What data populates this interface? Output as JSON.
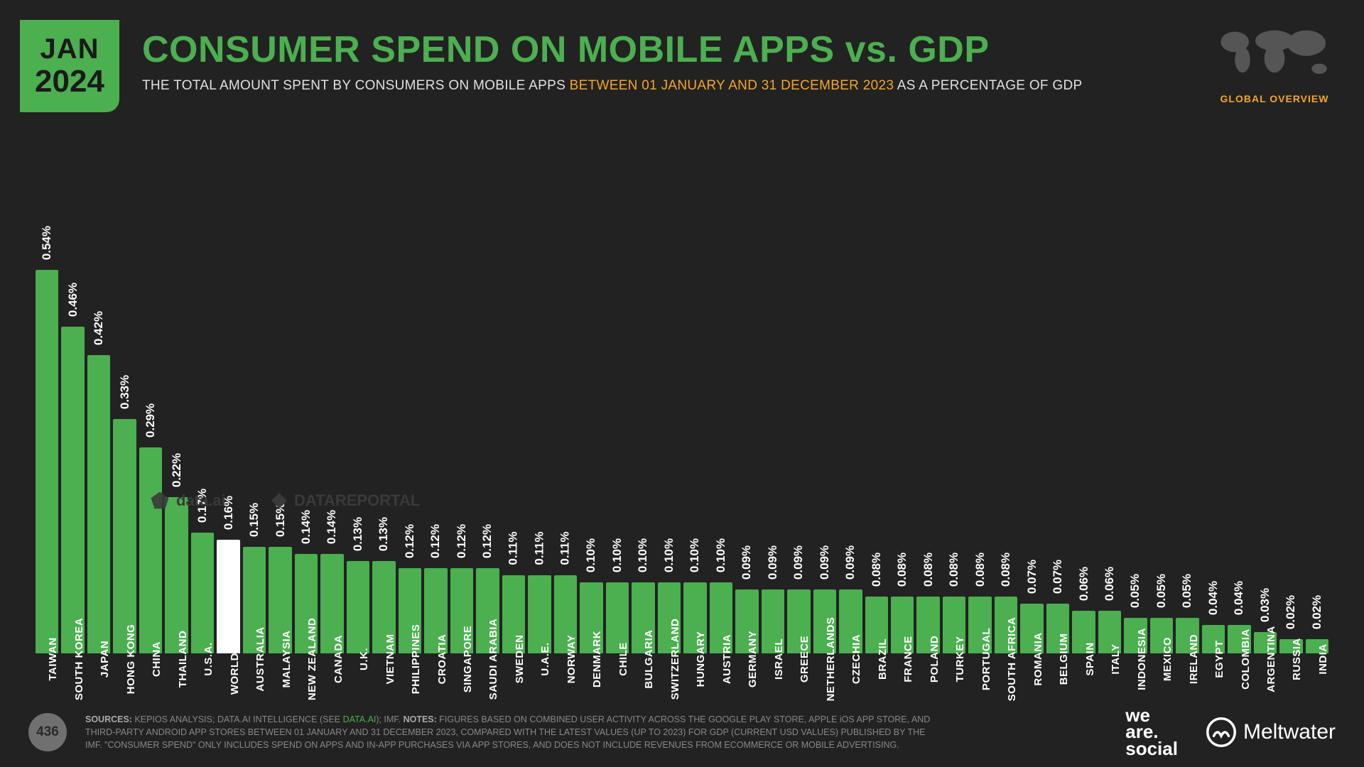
{
  "badge": {
    "month": "JAN",
    "year": "2024"
  },
  "title": "CONSUMER SPEND ON MOBILE APPS vs. GDP",
  "subtitle_pre": "THE TOTAL AMOUNT SPENT BY CONSUMERS ON MOBILE APPS ",
  "subtitle_accent": "BETWEEN 01 JANUARY AND 31 DECEMBER 2023",
  "subtitle_post": " AS A PERCENTAGE OF GDP",
  "overview_label": "GLOBAL OVERVIEW",
  "chart": {
    "type": "bar",
    "max_value": 0.54,
    "bar_color": "#4caf50",
    "worldwide_color": "#ffffff",
    "background_color": "#222222",
    "value_fontsize": 17,
    "label_fontsize": 15,
    "data": [
      {
        "label": "TAIWAN",
        "value": 0.54,
        "display": "0.54%"
      },
      {
        "label": "SOUTH KOREA",
        "value": 0.46,
        "display": "0.46%"
      },
      {
        "label": "JAPAN",
        "value": 0.42,
        "display": "0.42%"
      },
      {
        "label": "HONG KONG",
        "value": 0.33,
        "display": "0.33%"
      },
      {
        "label": "CHINA",
        "value": 0.29,
        "display": "0.29%"
      },
      {
        "label": "THAILAND",
        "value": 0.22,
        "display": "0.22%"
      },
      {
        "label": "U.S.A.",
        "value": 0.17,
        "display": "0.17%"
      },
      {
        "label": "WORLDWIDE",
        "value": 0.16,
        "display": "0.16%",
        "highlight": true
      },
      {
        "label": "AUSTRALIA",
        "value": 0.15,
        "display": "0.15%"
      },
      {
        "label": "MALAYSIA",
        "value": 0.15,
        "display": "0.15%"
      },
      {
        "label": "NEW ZEALAND",
        "value": 0.14,
        "display": "0.14%"
      },
      {
        "label": "CANADA",
        "value": 0.14,
        "display": "0.14%"
      },
      {
        "label": "U.K.",
        "value": 0.13,
        "display": "0.13%"
      },
      {
        "label": "VIETNAM",
        "value": 0.13,
        "display": "0.13%"
      },
      {
        "label": "PHILIPPINES",
        "value": 0.12,
        "display": "0.12%"
      },
      {
        "label": "CROATIA",
        "value": 0.12,
        "display": "0.12%"
      },
      {
        "label": "SINGAPORE",
        "value": 0.12,
        "display": "0.12%"
      },
      {
        "label": "SAUDI ARABIA",
        "value": 0.12,
        "display": "0.12%"
      },
      {
        "label": "SWEDEN",
        "value": 0.11,
        "display": "0.11%"
      },
      {
        "label": "U.A.E.",
        "value": 0.11,
        "display": "0.11%"
      },
      {
        "label": "NORWAY",
        "value": 0.11,
        "display": "0.11%"
      },
      {
        "label": "DENMARK",
        "value": 0.1,
        "display": "0.10%"
      },
      {
        "label": "CHILE",
        "value": 0.1,
        "display": "0.10%"
      },
      {
        "label": "BULGARIA",
        "value": 0.1,
        "display": "0.10%"
      },
      {
        "label": "SWITZERLAND",
        "value": 0.1,
        "display": "0.10%"
      },
      {
        "label": "HUNGARY",
        "value": 0.1,
        "display": "0.10%"
      },
      {
        "label": "AUSTRIA",
        "value": 0.1,
        "display": "0.10%"
      },
      {
        "label": "GERMANY",
        "value": 0.09,
        "display": "0.09%"
      },
      {
        "label": "ISRAEL",
        "value": 0.09,
        "display": "0.09%"
      },
      {
        "label": "GREECE",
        "value": 0.09,
        "display": "0.09%"
      },
      {
        "label": "NETHERLANDS",
        "value": 0.09,
        "display": "0.09%"
      },
      {
        "label": "CZECHIA",
        "value": 0.09,
        "display": "0.09%"
      },
      {
        "label": "BRAZIL",
        "value": 0.08,
        "display": "0.08%"
      },
      {
        "label": "FRANCE",
        "value": 0.08,
        "display": "0.08%"
      },
      {
        "label": "POLAND",
        "value": 0.08,
        "display": "0.08%"
      },
      {
        "label": "TURKEY",
        "value": 0.08,
        "display": "0.08%"
      },
      {
        "label": "PORTUGAL",
        "value": 0.08,
        "display": "0.08%"
      },
      {
        "label": "SOUTH AFRICA",
        "value": 0.08,
        "display": "0.08%"
      },
      {
        "label": "ROMANIA",
        "value": 0.07,
        "display": "0.07%"
      },
      {
        "label": "BELGIUM",
        "value": 0.07,
        "display": "0.07%"
      },
      {
        "label": "SPAIN",
        "value": 0.06,
        "display": "0.06%"
      },
      {
        "label": "ITALY",
        "value": 0.06,
        "display": "0.06%"
      },
      {
        "label": "INDONESIA",
        "value": 0.05,
        "display": "0.05%"
      },
      {
        "label": "MEXICO",
        "value": 0.05,
        "display": "0.05%"
      },
      {
        "label": "IRELAND",
        "value": 0.05,
        "display": "0.05%"
      },
      {
        "label": "EGYPT",
        "value": 0.04,
        "display": "0.04%"
      },
      {
        "label": "COLOMBIA",
        "value": 0.04,
        "display": "0.04%"
      },
      {
        "label": "ARGENTINA",
        "value": 0.03,
        "display": "0.03%"
      },
      {
        "label": "RUSSIA",
        "value": 0.02,
        "display": "0.02%"
      },
      {
        "label": "INDIA",
        "value": 0.02,
        "display": "0.02%"
      }
    ]
  },
  "footer": {
    "page_number": "436",
    "sources_label": "SOURCES:",
    "sources_text_1": " KEPIOS ANALYSIS; DATA.AI INTELLIGENCE (SEE ",
    "sources_link": "DATA.AI",
    "sources_text_2": "); IMF. ",
    "notes_label": "NOTES:",
    "notes_text": " FIGURES BASED ON COMBINED USER ACTIVITY ACROSS THE GOOGLE PLAY STORE, APPLE iOS APP STORE, AND THIRD-PARTY ANDROID APP STORES BETWEEN 01 JANUARY AND 31 DECEMBER 2023, COMPARED WITH THE LATEST VALUES (UP TO 2023) FOR GDP (CURRENT USD VALUES) PUBLISHED BY THE IMF. \"CONSUMER SPEND\" ONLY INCLUDES SPEND ON APPS AND IN-APP PURCHASES VIA APP STORES, AND DOES NOT INCLUDE REVENUES FROM ECOMMERCE OR MOBILE ADVERTISING.",
    "brand_was_l1": "we",
    "brand_was_l2": "are",
    "brand_was_l3": "social",
    "brand_meltwater": "Meltwater"
  },
  "watermarks": {
    "dataai": "data.ai",
    "datareportal": "DATAREPORTAL"
  }
}
